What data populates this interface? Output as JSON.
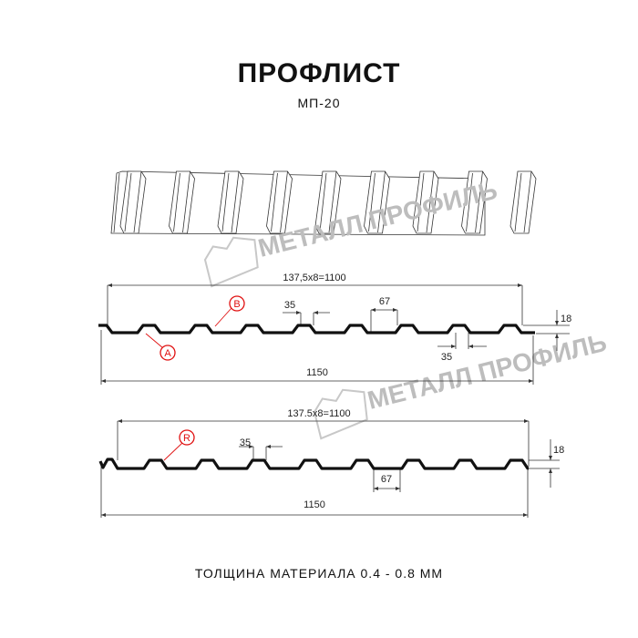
{
  "header": {
    "title": "ПРОФЛИСТ",
    "subtitle": "МП-20"
  },
  "watermark": {
    "text": "МЕТАЛЛ ПРОФИЛЬ",
    "color": "#bdbdbd"
  },
  "profile1": {
    "pitch_label": "137,5x8=1100",
    "width_label": "1150",
    "top_width_label": "35",
    "bottom_width_label": "35",
    "rib_base_label": "67",
    "height_label": "18",
    "marker_a": "A",
    "marker_b": "B"
  },
  "profile2": {
    "pitch_label": "137.5x8=1100",
    "width_label": "1150",
    "top_width_label": "35",
    "rib_base_label": "67",
    "height_label": "18",
    "marker_r": "R"
  },
  "footer": {
    "thickness": "ТОЛЩИНА МАТЕРИАЛА 0.4 - 0.8 ММ"
  },
  "colors": {
    "marker": "#e01010",
    "profile": "#111111"
  }
}
